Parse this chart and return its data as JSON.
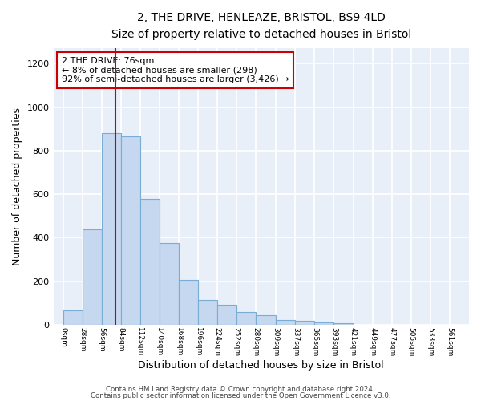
{
  "title": "2, THE DRIVE, HENLEAZE, BRISTOL, BS9 4LD",
  "subtitle": "Size of property relative to detached houses in Bristol",
  "xlabel": "Distribution of detached houses by size in Bristol",
  "ylabel": "Number of detached properties",
  "bar_values": [
    65,
    440,
    880,
    865,
    580,
    375,
    205,
    115,
    90,
    57,
    45,
    22,
    18,
    10,
    8
  ],
  "bar_left_edges": [
    0,
    28,
    56,
    84,
    112,
    140,
    168,
    196,
    224,
    252,
    280,
    309,
    337,
    365,
    393
  ],
  "bar_widths": [
    28,
    28,
    28,
    28,
    28,
    28,
    28,
    28,
    28,
    28,
    29,
    28,
    28,
    28,
    28
  ],
  "x_tick_labels": [
    "0sqm",
    "28sqm",
    "56sqm",
    "84sqm",
    "112sqm",
    "140sqm",
    "168sqm",
    "196sqm",
    "224sqm",
    "252sqm",
    "280sqm",
    "309sqm",
    "337sqm",
    "365sqm",
    "393sqm",
    "421sqm",
    "449sqm",
    "477sqm",
    "505sqm",
    "533sqm",
    "561sqm"
  ],
  "x_tick_positions": [
    0,
    28,
    56,
    84,
    112,
    140,
    168,
    196,
    224,
    252,
    280,
    309,
    337,
    365,
    393,
    421,
    449,
    477,
    505,
    533,
    561
  ],
  "ylim": [
    0,
    1270
  ],
  "xlim": [
    -14,
    589
  ],
  "bar_color": "#c5d8ef",
  "bar_edge_color": "#7aadd4",
  "background_color": "#e8eff9",
  "grid_color": "#ffffff",
  "vline_x": 76,
  "vline_color": "#cc0000",
  "annotation_text": "2 THE DRIVE: 76sqm\n← 8% of detached houses are smaller (298)\n92% of semi-detached houses are larger (3,426) →",
  "annotation_box_color": "#ffffff",
  "annotation_box_edge_color": "#cc0000",
  "footnote1": "Contains HM Land Registry data © Crown copyright and database right 2024.",
  "footnote2": "Contains public sector information licensed under the Open Government Licence v3.0."
}
